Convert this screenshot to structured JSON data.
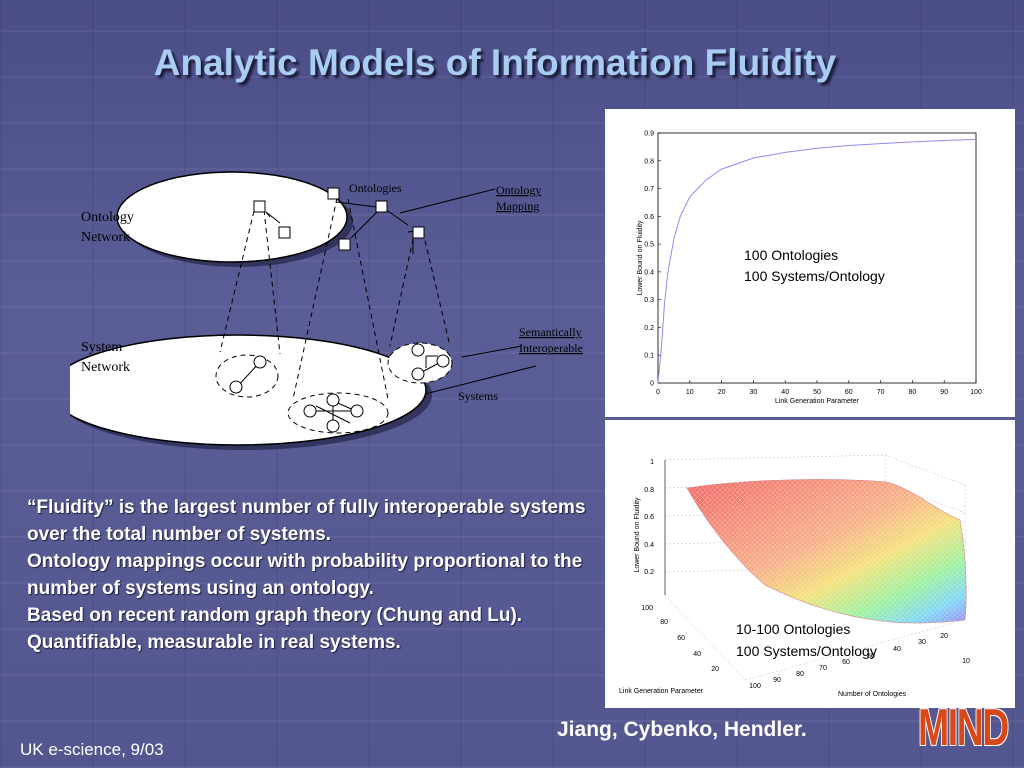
{
  "slide": {
    "title": "Analytic Models of Information Fluidity",
    "bullets": [
      "“Fluidity” is the largest number of fully interoperable systems over the total number of systems.",
      "Ontology mappings occur with probability proportional to the number of systems using an ontology.",
      "Based on recent random graph theory (Chung and Lu).",
      "Quantifiable, measurable in real systems."
    ],
    "footer": "UK e-science, 9/03",
    "authors": "Jiang, Cybenko, Hendler.",
    "logo_text": "MIND"
  },
  "diagram": {
    "ontology_network_label": [
      "Ontology",
      "Network"
    ],
    "system_network_label": [
      "System",
      "Network"
    ],
    "ontologies": "Ontologies",
    "ontology_mapping": [
      "Ontology",
      "Mapping"
    ],
    "semantically_interoperable": [
      "Semantically",
      "Interoperable"
    ],
    "systems": "Systems"
  },
  "chart_data": [
    {
      "type": "line",
      "xlabel": "Link Generation Parameter",
      "ylabel": "Lower Bound on Fluidity",
      "xlim": [
        0,
        100
      ],
      "ylim": [
        0,
        0.9
      ],
      "xticks": [
        0,
        10,
        20,
        30,
        40,
        50,
        60,
        70,
        80,
        90,
        100
      ],
      "yticks": [
        0,
        0.1,
        0.2,
        0.3,
        0.4,
        0.5,
        0.6,
        0.7,
        0.8,
        0.9
      ],
      "annotation": [
        "100 Ontologies",
        "100 Systems/Ontology"
      ],
      "series": [
        {
          "color": "#8c8cf0",
          "x": [
            0,
            1,
            2,
            3,
            5,
            7,
            10,
            15,
            20,
            30,
            40,
            50,
            60,
            70,
            80,
            90,
            100
          ],
          "y": [
            0,
            0.12,
            0.28,
            0.39,
            0.52,
            0.6,
            0.67,
            0.73,
            0.77,
            0.81,
            0.83,
            0.845,
            0.855,
            0.862,
            0.868,
            0.873,
            0.877
          ]
        }
      ]
    },
    {
      "type": "surface",
      "xlabel": "Number of Ontologies",
      "ylabel": "Link Generation Parameter",
      "zlabel": "Lower Bound on Fluidity",
      "xticks": [
        10,
        20,
        30,
        40,
        50,
        60,
        70,
        80,
        90,
        100
      ],
      "yticks": [
        20,
        40,
        60,
        80,
        100
      ],
      "zticks": [
        0.2,
        0.4,
        0.6,
        0.8,
        1
      ],
      "zlim": [
        0,
        1
      ],
      "annotation": [
        "10-100 Ontologies",
        "100 Systems/Ontology"
      ]
    }
  ]
}
